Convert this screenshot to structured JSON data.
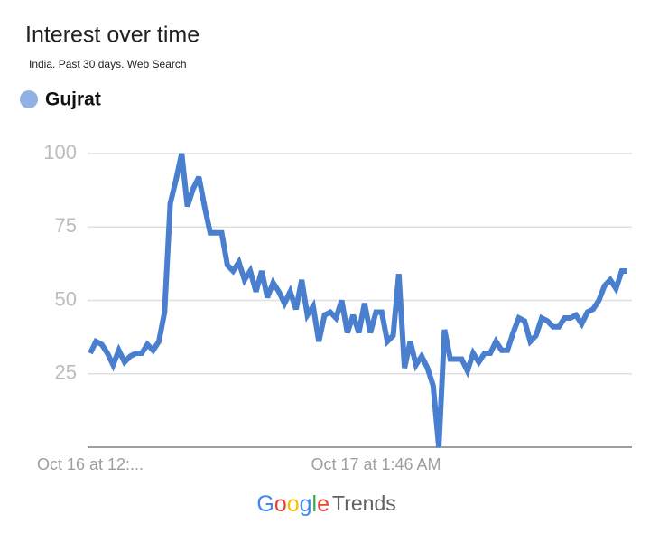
{
  "chart_data": {
    "type": "line",
    "title": "Interest over time",
    "subtitle": "India. Past 30 days. Web Search",
    "footer": {
      "brand": "Google",
      "product": "Trends"
    },
    "categories": [
      "Oct 16 at 12:...",
      null,
      null,
      null,
      null,
      null,
      null,
      null,
      null,
      null,
      null,
      null,
      null,
      null,
      null,
      null,
      null,
      null,
      null,
      null,
      null,
      null,
      null,
      null,
      null,
      null,
      null,
      null,
      null,
      null,
      null,
      null,
      null,
      null,
      null,
      null,
      null,
      null,
      null,
      null,
      null,
      null,
      null,
      null,
      null,
      null,
      null,
      null,
      null,
      null,
      "Oct 17 at 1:46 AM",
      null,
      null,
      null,
      null,
      null,
      null,
      null,
      null,
      null,
      null,
      null,
      null,
      null,
      null,
      null,
      null,
      null,
      null,
      null,
      null,
      null,
      null,
      null,
      null,
      null,
      null,
      null,
      null,
      null,
      null,
      null,
      null,
      null,
      null,
      null,
      null,
      null,
      null,
      null,
      null,
      null,
      null,
      null,
      null
    ],
    "series": [
      {
        "name": "Gujrat",
        "color": "#4a7fcf",
        "legend_color": "#8fb1e3",
        "values": [
          32,
          36,
          35,
          32,
          28,
          33,
          29,
          31,
          32,
          32,
          35,
          33,
          36,
          46,
          83,
          91,
          100,
          82,
          88,
          92,
          82,
          73,
          73,
          73,
          62,
          60,
          63,
          57,
          60,
          53,
          60,
          51,
          56,
          53,
          49,
          53,
          47,
          57,
          45,
          48,
          36,
          45,
          46,
          44,
          50,
          39,
          45,
          39,
          49,
          39,
          46,
          46,
          36,
          38,
          59,
          27,
          36,
          28,
          31,
          27,
          21,
          0,
          40,
          30,
          30,
          30,
          26,
          32,
          29,
          32,
          32,
          36,
          33,
          33,
          39,
          44,
          43,
          36,
          38,
          44,
          43,
          41,
          41,
          44,
          44,
          45,
          42,
          46,
          47,
          50,
          55,
          57,
          54,
          60,
          60
        ]
      }
    ],
    "ylim": [
      0,
      100
    ],
    "yticks": [
      25,
      50,
      75,
      100
    ],
    "grid": true
  }
}
